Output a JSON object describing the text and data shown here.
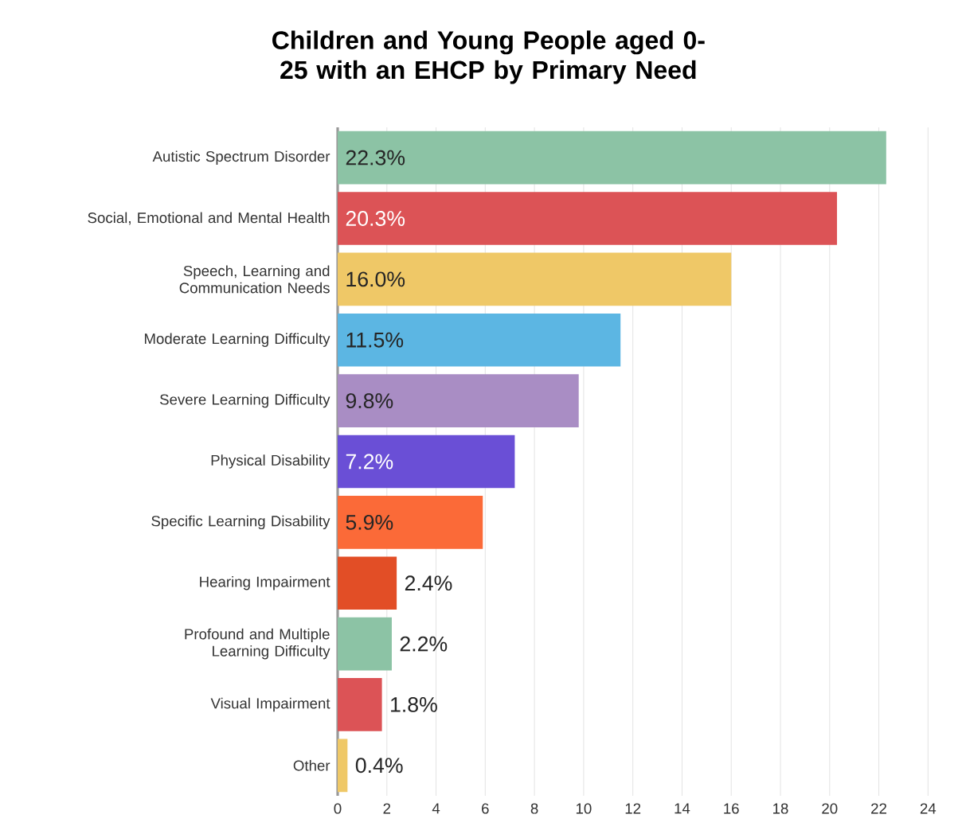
{
  "chart_data": {
    "type": "bar",
    "orientation": "horizontal",
    "title": "Children and Young People aged 0-25 with an EHCP by Primary Need",
    "categories": [
      "Autistic Spectrum Disorder",
      "Social, Emotional and Mental Health",
      "Speech, Learning and Communication Needs",
      "Moderate Learning Difficulty",
      "Severe Learning Difficulty",
      "Physical Disability",
      "Specific Learning Disability",
      "Hearing Impairment",
      "Profound and Multiple Learning Difficulty",
      "Visual Impairment",
      "Other"
    ],
    "values": [
      22.3,
      20.3,
      16.0,
      11.5,
      9.8,
      7.2,
      5.9,
      2.4,
      2.2,
      1.8,
      0.4
    ],
    "value_labels": [
      "22.3%",
      "20.3%",
      "16.0%",
      "11.5%",
      "9.8%",
      "7.2%",
      "5.9%",
      "2.4%",
      "2.2%",
      "1.8%",
      "0.4%"
    ],
    "colors": [
      "#8cc3a5",
      "#dc5356",
      "#efc867",
      "#5cb6e3",
      "#a98dc4",
      "#6a4fd6",
      "#fb6a38",
      "#e24e26",
      "#8cc3a5",
      "#dc5356",
      "#efc867"
    ],
    "xlim": [
      0,
      24
    ],
    "xticks": [
      0,
      2,
      4,
      6,
      8,
      10,
      12,
      14,
      16,
      18,
      20,
      22,
      24
    ],
    "grid": "x"
  }
}
